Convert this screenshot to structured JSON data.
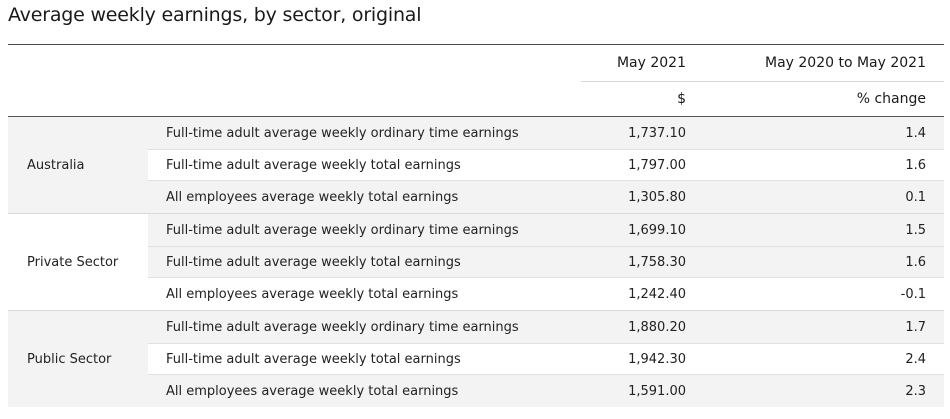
{
  "title": "Average weekly earnings, by sector, original",
  "header": {
    "col1": "May 2021",
    "col2": "May 2020 to May 2021",
    "col1_unit": "$",
    "col2_unit": "% change"
  },
  "groups": [
    {
      "sector": "Australia",
      "rows": [
        {
          "label": "Full-time adult average weekly ordinary time earnings",
          "value": "1,737.10",
          "change": "1.4"
        },
        {
          "label": "Full-time adult average weekly total earnings",
          "value": "1,797.00",
          "change": "1.6"
        },
        {
          "label": "All employees average weekly total earnings",
          "value": "1,305.80",
          "change": "0.1"
        }
      ]
    },
    {
      "sector": "Private Sector",
      "rows": [
        {
          "label": "Full-time adult average weekly ordinary time earnings",
          "value": "1,699.10",
          "change": "1.5"
        },
        {
          "label": "Full-time adult average weekly total earnings",
          "value": "1,758.30",
          "change": "1.6"
        },
        {
          "label": "All employees average weekly total earnings",
          "value": "1,242.40",
          "change": "-0.1"
        }
      ]
    },
    {
      "sector": "Public Sector",
      "rows": [
        {
          "label": "Full-time adult average weekly ordinary time earnings",
          "value": "1,880.20",
          "change": "1.7"
        },
        {
          "label": "Full-time adult average weekly total earnings",
          "value": "1,942.30",
          "change": "2.4"
        },
        {
          "label": "All employees average weekly total earnings",
          "value": "1,591.00",
          "change": "2.3"
        }
      ]
    }
  ]
}
